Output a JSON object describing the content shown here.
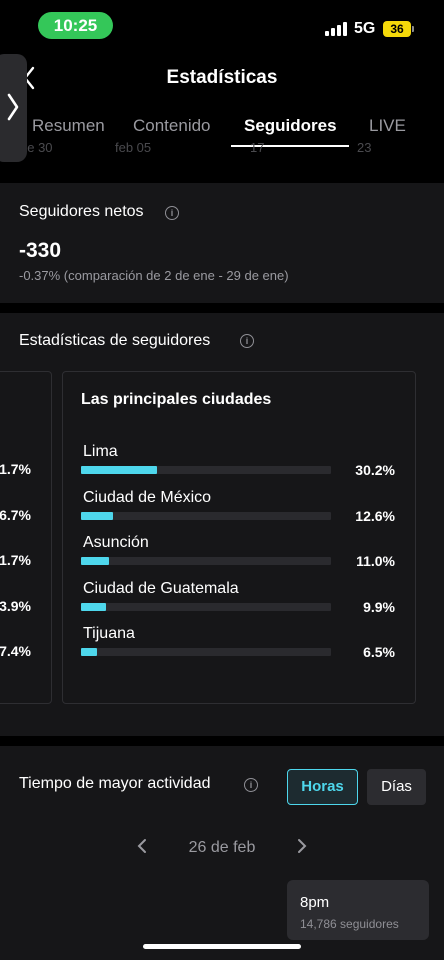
{
  "status_bar": {
    "time": "10:25",
    "network": "5G",
    "battery": "36",
    "signal_icon": "signal-bars-icon"
  },
  "header": {
    "title": "Estadísticas",
    "back_icon": "chevron-left-icon"
  },
  "side_handle": {
    "icon": "chevron-right-icon"
  },
  "tabs": [
    {
      "label": "Resumen",
      "active": false
    },
    {
      "label": "Contenido",
      "active": false
    },
    {
      "label": "Seguidores",
      "active": true
    },
    {
      "label": "LIVE",
      "active": false
    }
  ],
  "timeline_ghost": [
    "ne 30",
    "feb 05",
    "17",
    "23"
  ],
  "net_followers": {
    "title": "Seguidores netos",
    "value": "-330",
    "comparison": "-0.37% (comparación de 2 de ene - 29 de ene)"
  },
  "follower_stats": {
    "title": "Estadísticas de seguidores",
    "left_panel_values": [
      "1.7%",
      "6.7%",
      "1.7%",
      "3.9%",
      "7.4%"
    ],
    "cities_panel": {
      "title": "Las principales ciudades",
      "cities": [
        {
          "name": "Lima",
          "percent_label": "30.2%",
          "percent": 30.2
        },
        {
          "name": "Ciudad de México",
          "percent_label": "12.6%",
          "percent": 12.6
        },
        {
          "name": "Asunción",
          "percent_label": "11.0%",
          "percent": 11.0
        },
        {
          "name": "Ciudad de Guatemala",
          "percent_label": "9.9%",
          "percent": 9.9
        },
        {
          "name": "Tijuana",
          "percent_label": "6.5%",
          "percent": 6.5
        }
      ]
    }
  },
  "activity": {
    "title": "Tiempo de mayor actividad",
    "toggle_hours": "Horas",
    "toggle_days": "Días",
    "date": "26 de feb",
    "tooltip": {
      "time": "8pm",
      "subtitle": "14,786 seguidores"
    }
  },
  "colors": {
    "accent": "#4ed7ec",
    "background": "#000000",
    "card": "#161618",
    "time_pill": "#34c759",
    "battery": "#f5d90a"
  }
}
